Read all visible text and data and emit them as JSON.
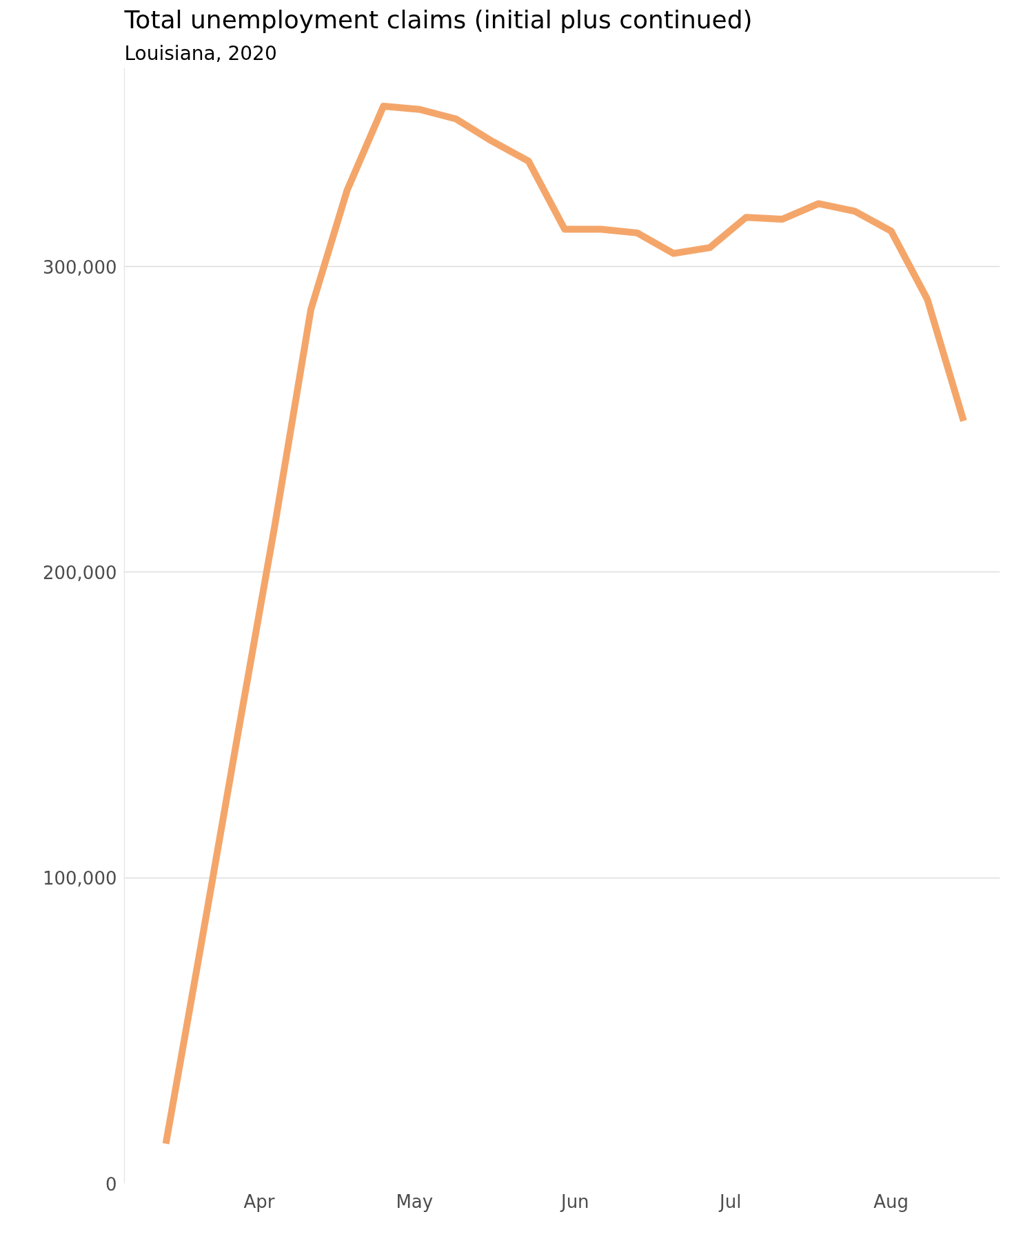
{
  "chart_data": {
    "type": "line",
    "title": "Total unemployment claims (initial plus continued)",
    "subtitle": "Louisiana, 2020",
    "x": [
      "2020-03-14",
      "2020-03-21",
      "2020-03-28",
      "2020-04-04",
      "2020-04-11",
      "2020-04-18",
      "2020-04-25",
      "2020-05-02",
      "2020-05-09",
      "2020-05-16",
      "2020-05-23",
      "2020-05-30",
      "2020-06-06",
      "2020-06-13",
      "2020-06-20",
      "2020-06-27",
      "2020-07-04",
      "2020-07-11",
      "2020-07-18",
      "2020-07-25",
      "2020-08-01",
      "2020-08-08",
      "2020-08-15"
    ],
    "series": [
      {
        "color": "#f4a66a",
        "values": [
          13000,
          80000,
          148000,
          215000,
          286000,
          325000,
          352500,
          351400,
          348300,
          341000,
          334500,
          312200,
          312200,
          311000,
          304300,
          306200,
          316100,
          315500,
          320600,
          318100,
          311600,
          289300,
          249500
        ]
      }
    ],
    "xlim": [
      "2020-03-06",
      "2020-08-22"
    ],
    "xticks": [
      {
        "value": "2020-04-01",
        "label": "Apr"
      },
      {
        "value": "2020-05-01",
        "label": "May"
      },
      {
        "value": "2020-06-01",
        "label": "Jun"
      },
      {
        "value": "2020-07-01",
        "label": "Jul"
      },
      {
        "value": "2020-08-01",
        "label": "Aug"
      }
    ],
    "ylim": [
      0,
      365000
    ],
    "yticks": [
      {
        "value": 0,
        "label": "0"
      },
      {
        "value": 100000,
        "label": "100,000"
      },
      {
        "value": 200000,
        "label": "200,000"
      },
      {
        "value": 300000,
        "label": "300,000"
      }
    ],
    "grid": "y",
    "line_style": "solid"
  }
}
